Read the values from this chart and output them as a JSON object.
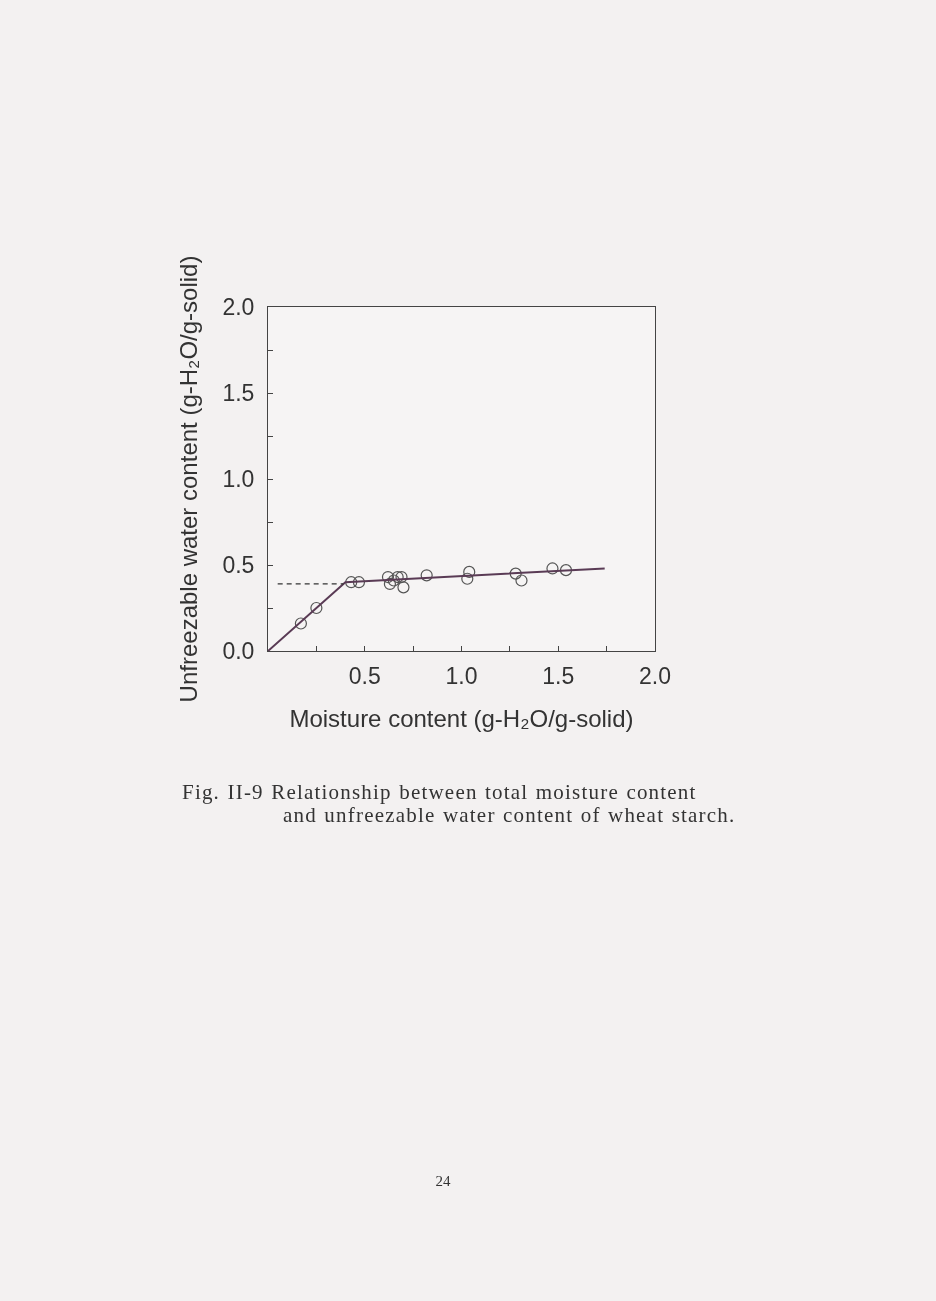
{
  "chart_data": {
    "type": "scatter",
    "xlabel": "Moisture content (g-H₂O/g-solid)",
    "ylabel": "Unfreezable water content (g-H₂O/g-solid)",
    "xlim": [
      0,
      2
    ],
    "ylim": [
      0,
      2
    ],
    "xticks": [
      {
        "value": 0,
        "label": null
      },
      {
        "value": 0.25,
        "label": null
      },
      {
        "value": 0.5,
        "label": "0.5"
      },
      {
        "value": 0.75,
        "label": null
      },
      {
        "value": 1,
        "label": "1.0"
      },
      {
        "value": 1.25,
        "label": null
      },
      {
        "value": 1.5,
        "label": "1.5"
      },
      {
        "value": 1.75,
        "label": null
      },
      {
        "value": 2,
        "label": "2.0"
      }
    ],
    "yticks": [
      {
        "value": 0,
        "label": "0.0"
      },
      {
        "value": 0.25,
        "label": null
      },
      {
        "value": 0.5,
        "label": "0.5"
      },
      {
        "value": 0.75,
        "label": null
      },
      {
        "value": 1,
        "label": "1.0"
      },
      {
        "value": 1.25,
        "label": null
      },
      {
        "value": 1.5,
        "label": "1.5"
      },
      {
        "value": 1.75,
        "label": null
      },
      {
        "value": 2,
        "label": "2.0"
      }
    ],
    "series": [
      {
        "color": "#555555",
        "marker": "circle",
        "x": [
          0.17,
          0.25,
          0.43,
          0.47,
          0.62,
          0.63,
          0.65,
          0.67,
          0.69,
          0.7,
          0.82,
          1.03,
          1.04,
          1.28,
          1.31,
          1.47,
          1.54
        ],
        "values": [
          0.16,
          0.25,
          0.4,
          0.4,
          0.43,
          0.39,
          0.41,
          0.43,
          0.43,
          0.37,
          0.44,
          0.42,
          0.46,
          0.45,
          0.41,
          0.48,
          0.47
        ]
      },
      {
        "type": "line",
        "color": "#5a3b55",
        "marker": "none",
        "line_style": "solid",
        "x": [
          0,
          0.4,
          1.74
        ],
        "values": [
          0,
          0.4,
          0.48
        ]
      },
      {
        "type": "line",
        "color": "#333333",
        "marker": "none",
        "line_style": "dashed",
        "x": [
          0.05,
          0.39
        ],
        "values": [
          0.39,
          0.39
        ]
      }
    ],
    "annotations": [
      "Fig. II-9 Relationship between total moisture content\nand unfreezable water content of wheat starch.",
      "24"
    ]
  }
}
